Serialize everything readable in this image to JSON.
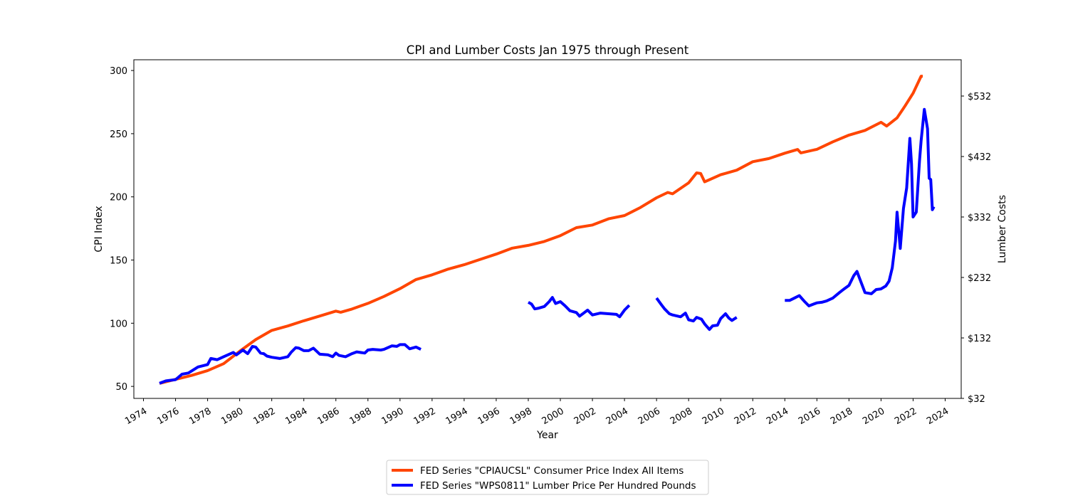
{
  "chart_data": {
    "type": "line",
    "title": "CPI and Lumber Costs Jan 1975 through Present",
    "xlabel": "Year",
    "ylabel": "CPI Index",
    "y2label": "Lumber Costs",
    "xlim": [
      1973.4,
      2025.0
    ],
    "ylim": [
      40.5,
      308.5
    ],
    "y2lim": [
      32,
      592
    ],
    "x_ticks": [
      1974,
      1976,
      1978,
      1980,
      1982,
      1984,
      1986,
      1988,
      1990,
      1992,
      1994,
      1996,
      1998,
      2000,
      2002,
      2004,
      2006,
      2008,
      2010,
      2012,
      2014,
      2016,
      2018,
      2020,
      2022,
      2024
    ],
    "y_ticks": [
      50,
      100,
      150,
      200,
      250,
      300
    ],
    "y2_ticks": [
      32,
      132,
      232,
      332,
      432,
      532
    ],
    "y2_tick_labels": [
      "$32",
      "$132",
      "$232",
      "$332",
      "$432",
      "$532"
    ],
    "grid": false,
    "legend_position": "below",
    "series": [
      {
        "name": "FED Series \"CPIAUCSL\" Consumer Price Index All Items",
        "axis": "left",
        "color": "#ff4500",
        "points": [
          [
            1975.0,
            52.3
          ],
          [
            1976.0,
            55.6
          ],
          [
            1977.0,
            58.7
          ],
          [
            1978.0,
            62.5
          ],
          [
            1979.0,
            68.0
          ],
          [
            1980.0,
            77.8
          ],
          [
            1981.0,
            87.0
          ],
          [
            1982.0,
            94.3
          ],
          [
            1983.0,
            97.8
          ],
          [
            1984.0,
            101.9
          ],
          [
            1985.0,
            105.7
          ],
          [
            1986.0,
            109.6
          ],
          [
            1986.3,
            108.7
          ],
          [
            1987.0,
            111.2
          ],
          [
            1988.0,
            115.7
          ],
          [
            1989.0,
            121.2
          ],
          [
            1990.0,
            127.4
          ],
          [
            1991.0,
            134.6
          ],
          [
            1992.0,
            138.3
          ],
          [
            1993.0,
            142.8
          ],
          [
            1994.0,
            146.3
          ],
          [
            1995.0,
            150.5
          ],
          [
            1996.0,
            154.7
          ],
          [
            1997.0,
            159.4
          ],
          [
            1998.0,
            161.6
          ],
          [
            1999.0,
            164.7
          ],
          [
            2000.0,
            169.3
          ],
          [
            2001.0,
            175.6
          ],
          [
            2002.0,
            177.7
          ],
          [
            2003.0,
            182.6
          ],
          [
            2004.0,
            185.2
          ],
          [
            2005.0,
            191.6
          ],
          [
            2006.0,
            199.3
          ],
          [
            2006.7,
            203.5
          ],
          [
            2007.0,
            202.4
          ],
          [
            2008.0,
            211.1
          ],
          [
            2008.5,
            219.0
          ],
          [
            2008.75,
            218.5
          ],
          [
            2009.0,
            211.9
          ],
          [
            2010.0,
            217.5
          ],
          [
            2011.0,
            221.1
          ],
          [
            2012.0,
            227.8
          ],
          [
            2013.0,
            230.3
          ],
          [
            2014.0,
            234.6
          ],
          [
            2014.8,
            237.5
          ],
          [
            2015.0,
            234.8
          ],
          [
            2016.0,
            237.6
          ],
          [
            2017.0,
            243.6
          ],
          [
            2018.0,
            248.9
          ],
          [
            2019.0,
            252.6
          ],
          [
            2020.0,
            259.0
          ],
          [
            2020.35,
            256.0
          ],
          [
            2021.0,
            262.5
          ],
          [
            2021.5,
            272.0
          ],
          [
            2022.0,
            282.0
          ],
          [
            2022.5,
            295.5
          ],
          [
            2022.6,
            295.5
          ]
        ]
      },
      {
        "name": "FED Series \"WPS0811\" Lumber Price Per Hundred Pounds",
        "axis": "right",
        "color": "#0000ff",
        "segments": [
          [
            [
              1975.0,
              57
            ],
            [
              1975.4,
              61
            ],
            [
              1976.0,
              63
            ],
            [
              1976.4,
              72
            ],
            [
              1976.8,
              74
            ],
            [
              1977.4,
              84
            ],
            [
              1978.0,
              88
            ],
            [
              1978.2,
              98
            ],
            [
              1978.6,
              96
            ],
            [
              1979.0,
              101
            ],
            [
              1979.6,
              108
            ],
            [
              1979.8,
              104
            ],
            [
              1980.2,
              112
            ],
            [
              1980.5,
              106
            ],
            [
              1980.8,
              118
            ],
            [
              1981.0,
              117
            ],
            [
              1981.3,
              107
            ],
            [
              1981.5,
              106
            ],
            [
              1981.7,
              102
            ],
            [
              1982.0,
              100
            ],
            [
              1982.5,
              98
            ],
            [
              1983.0,
              101
            ],
            [
              1983.2,
              108
            ],
            [
              1983.5,
              116
            ],
            [
              1983.7,
              115
            ],
            [
              1984.0,
              111
            ],
            [
              1984.3,
              111
            ],
            [
              1984.6,
              115
            ],
            [
              1984.8,
              110
            ],
            [
              1985.0,
              105
            ],
            [
              1985.5,
              104
            ],
            [
              1985.8,
              101
            ],
            [
              1986.0,
              107
            ],
            [
              1986.2,
              103
            ],
            [
              1986.6,
              101
            ],
            [
              1987.0,
              106
            ],
            [
              1987.3,
              109
            ],
            [
              1987.8,
              107
            ],
            [
              1988.0,
              112
            ],
            [
              1988.3,
              113
            ],
            [
              1988.8,
              112
            ],
            [
              1989.0,
              113
            ],
            [
              1989.5,
              119
            ],
            [
              1989.8,
              118
            ],
            [
              1990.0,
              121
            ],
            [
              1990.3,
              121
            ],
            [
              1990.6,
              114
            ],
            [
              1991.0,
              117
            ],
            [
              1991.3,
              113
            ]
          ],
          [
            [
              1998.0,
              191
            ],
            [
              1998.2,
              188
            ],
            [
              1998.4,
              180
            ],
            [
              1998.6,
              181
            ],
            [
              1999.0,
              184
            ],
            [
              1999.3,
              192
            ],
            [
              1999.5,
              199
            ],
            [
              1999.7,
              189
            ],
            [
              2000.0,
              192
            ],
            [
              2000.3,
              185
            ],
            [
              2000.6,
              177
            ],
            [
              2001.0,
              174
            ],
            [
              2001.2,
              168
            ],
            [
              2001.5,
              174
            ],
            [
              2001.7,
              178
            ],
            [
              2002.0,
              170
            ],
            [
              2002.5,
              173
            ],
            [
              2003.0,
              172
            ],
            [
              2003.5,
              171
            ],
            [
              2003.7,
              167
            ],
            [
              2004.0,
              178
            ],
            [
              2004.3,
              186
            ]
          ],
          [
            [
              2006.0,
              198
            ],
            [
              2006.3,
              187
            ],
            [
              2006.5,
              180
            ],
            [
              2006.8,
              172
            ],
            [
              2007.0,
              170
            ],
            [
              2007.5,
              167
            ],
            [
              2007.8,
              173
            ],
            [
              2008.0,
              162
            ],
            [
              2008.3,
              160
            ],
            [
              2008.5,
              166
            ],
            [
              2008.8,
              163
            ],
            [
              2009.0,
              155
            ],
            [
              2009.3,
              146
            ],
            [
              2009.5,
              152
            ],
            [
              2009.8,
              153
            ],
            [
              2010.0,
              164
            ],
            [
              2010.3,
              172
            ],
            [
              2010.5,
              165
            ],
            [
              2010.7,
              161
            ],
            [
              2011.0,
              166
            ]
          ],
          [
            [
              2014.0,
              194
            ],
            [
              2014.3,
              194
            ],
            [
              2014.6,
              198
            ],
            [
              2014.9,
              202
            ],
            [
              2015.2,
              193
            ],
            [
              2015.5,
              185
            ],
            [
              2015.8,
              188
            ],
            [
              2016.0,
              190
            ],
            [
              2016.3,
              191
            ],
            [
              2016.6,
              193
            ],
            [
              2017.0,
              198
            ],
            [
              2017.4,
              207
            ],
            [
              2017.7,
              213
            ],
            [
              2018.0,
              219
            ],
            [
              2018.3,
              235
            ],
            [
              2018.5,
              242
            ],
            [
              2018.7,
              228
            ],
            [
              2019.0,
              207
            ],
            [
              2019.4,
              205
            ],
            [
              2019.7,
              212
            ],
            [
              2020.0,
              213
            ],
            [
              2020.3,
              218
            ],
            [
              2020.5,
              226
            ],
            [
              2020.7,
              248
            ],
            [
              2020.9,
              292
            ],
            [
              2021.0,
              340
            ],
            [
              2021.2,
              280
            ],
            [
              2021.4,
              346
            ],
            [
              2021.6,
              380
            ],
            [
              2021.8,
              462
            ],
            [
              2021.9,
              420
            ],
            [
              2022.0,
              332
            ],
            [
              2022.2,
              340
            ],
            [
              2022.4,
              424
            ],
            [
              2022.5,
              458
            ],
            [
              2022.7,
              510
            ],
            [
              2022.9,
              478
            ],
            [
              2023.0,
              396
            ],
            [
              2023.1,
              394
            ],
            [
              2023.2,
              344
            ],
            [
              2023.3,
              349
            ]
          ]
        ]
      }
    ]
  }
}
